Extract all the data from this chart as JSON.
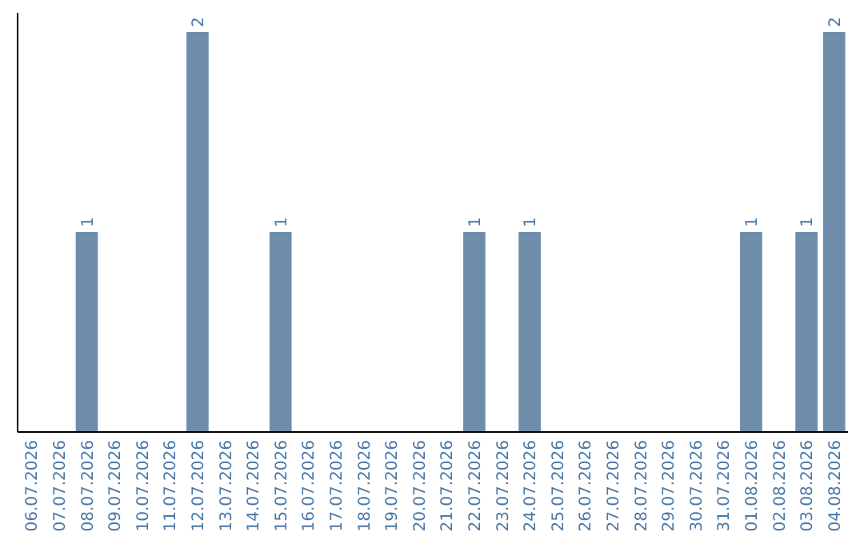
{
  "chart_data": {
    "type": "bar",
    "categories": [
      "06.07.2026",
      "07.07.2026",
      "08.07.2026",
      "09.07.2026",
      "10.07.2026",
      "11.07.2026",
      "12.07.2026",
      "13.07.2026",
      "14.07.2026",
      "15.07.2026",
      "16.07.2026",
      "17.07.2026",
      "18.07.2026",
      "19.07.2026",
      "20.07.2026",
      "21.07.2026",
      "22.07.2026",
      "23.07.2026",
      "24.07.2026",
      "25.07.2026",
      "26.07.2026",
      "27.07.2026",
      "28.07.2026",
      "29.07.2026",
      "30.07.2026",
      "31.07.2026",
      "01.08.2026",
      "02.08.2026",
      "03.08.2026",
      "04.08.2026"
    ],
    "values": [
      0,
      0,
      1,
      0,
      0,
      0,
      2,
      0,
      0,
      1,
      0,
      0,
      0,
      0,
      0,
      0,
      1,
      0,
      1,
      0,
      0,
      0,
      0,
      0,
      0,
      0,
      1,
      0,
      1,
      2
    ],
    "value_labels": [
      null,
      null,
      "1",
      null,
      null,
      null,
      "2",
      null,
      null,
      "1",
      null,
      null,
      null,
      null,
      null,
      null,
      "1",
      null,
      "1",
      null,
      null,
      null,
      null,
      null,
      null,
      null,
      "1",
      null,
      "1",
      "2"
    ],
    "color": "#6d8dab"
  }
}
